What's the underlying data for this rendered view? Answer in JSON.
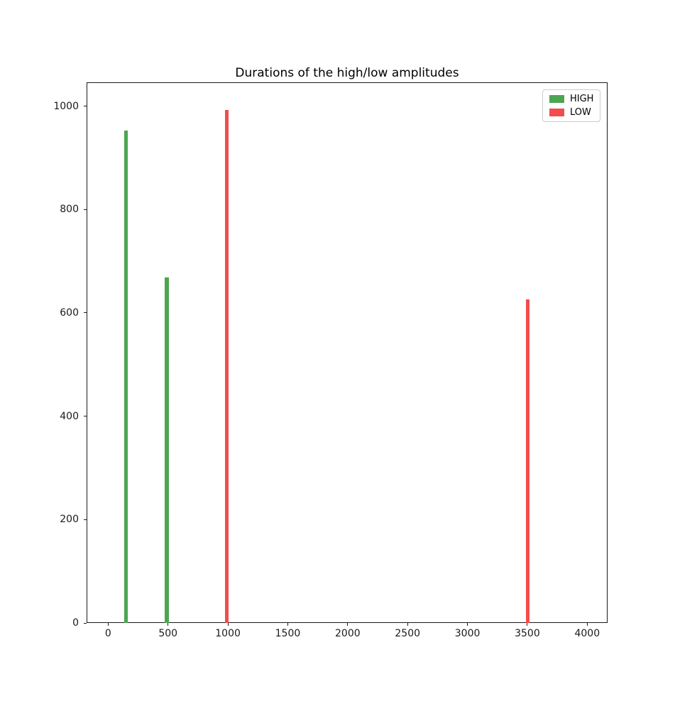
{
  "figure": {
    "title": "Durations of the high/low amplitudes"
  },
  "chart_data": {
    "type": "bar",
    "title": "Durations of the high/low amplitudes",
    "xlabel": "",
    "ylabel": "",
    "xlim": [
      -180,
      4170
    ],
    "ylim": [
      0,
      1046
    ],
    "xticks": [
      0,
      500,
      1000,
      1500,
      2000,
      2500,
      3000,
      3500,
      4000
    ],
    "yticks": [
      0,
      200,
      400,
      600,
      800,
      1000
    ],
    "grid": false,
    "bar_width_data_units": 32,
    "legend_position": "upper right",
    "series": [
      {
        "name": "HIGH",
        "color": "#4CA551",
        "points": [
          {
            "x": 150,
            "y": 952
          },
          {
            "x": 490,
            "y": 669
          }
        ]
      },
      {
        "name": "LOW",
        "color": "#F24C4C",
        "points": [
          {
            "x": 990,
            "y": 993
          },
          {
            "x": 3505,
            "y": 626
          }
        ]
      }
    ]
  }
}
